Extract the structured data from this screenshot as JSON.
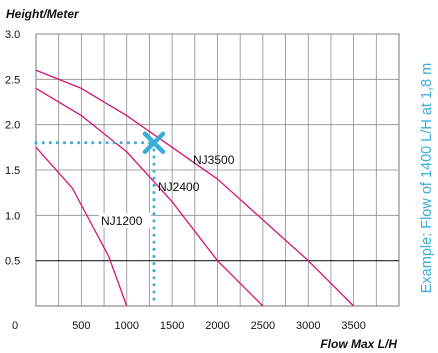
{
  "chart_data": {
    "type": "line",
    "ylabel": "Height/Meter",
    "xlabel": "Flow Max L/H",
    "xlim": [
      0,
      4000
    ],
    "ylim": [
      0,
      3.0
    ],
    "x_ticks": [
      0,
      500,
      1000,
      1500,
      2000,
      2500,
      3000,
      3500
    ],
    "y_ticks": [
      0.5,
      1.0,
      1.5,
      2.0,
      2.5,
      3.0
    ],
    "y_tick_labels": [
      "0.5",
      "1.0",
      "1.5",
      "2.0",
      "2.5",
      "3.0"
    ],
    "grid": true,
    "series": [
      {
        "name": "NJ1200",
        "color": "#d6156f",
        "x": [
          0,
          400,
          800,
          1000
        ],
        "y": [
          1.75,
          1.3,
          0.55,
          0.0
        ]
      },
      {
        "name": "NJ2400",
        "color": "#d6156f",
        "x": [
          0,
          500,
          1000,
          1500,
          2000,
          2500
        ],
        "y": [
          2.4,
          2.1,
          1.7,
          1.15,
          0.5,
          0.0
        ]
      },
      {
        "name": "NJ3500",
        "color": "#d6156f",
        "x": [
          0,
          500,
          1000,
          1500,
          2000,
          2500,
          3000,
          3500
        ],
        "y": [
          2.6,
          2.4,
          2.1,
          1.75,
          1.4,
          0.95,
          0.5,
          0.0
        ]
      }
    ],
    "annotation": {
      "text": "Example: Flow of 1400 L/H at 1,8 m",
      "x": 1300,
      "y": 1.8,
      "color": "#3aaed8"
    }
  }
}
